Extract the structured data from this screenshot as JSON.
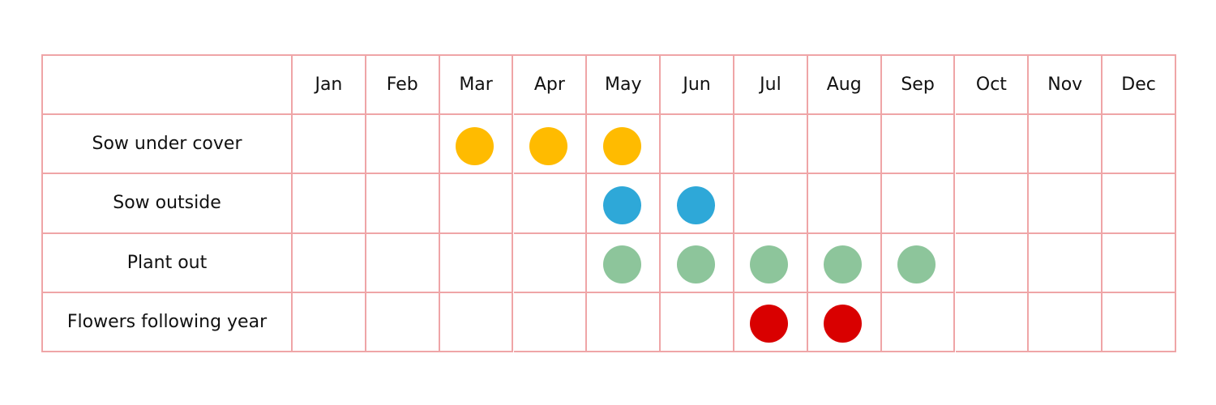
{
  "chart_data": {
    "type": "table",
    "months": [
      "Jan",
      "Feb",
      "Mar",
      "Apr",
      "May",
      "Jun",
      "Jul",
      "Aug",
      "Sep",
      "Oct",
      "Nov",
      "Dec"
    ],
    "rows": [
      {
        "label": "Sow under cover",
        "color": "#FFBB00",
        "months": [
          "Mar",
          "Apr",
          "May"
        ]
      },
      {
        "label": "Sow outside",
        "color": "#2EA8D8",
        "months": [
          "May",
          "Jun"
        ]
      },
      {
        "label": "Plant out",
        "color": "#8DC59B",
        "months": [
          "May",
          "Jun",
          "Jul",
          "Aug",
          "Sep"
        ]
      },
      {
        "label": "Flowers following year",
        "color": "#D90000",
        "months": [
          "Jul",
          "Aug"
        ]
      }
    ],
    "grid_color": "#EFA5A7"
  }
}
